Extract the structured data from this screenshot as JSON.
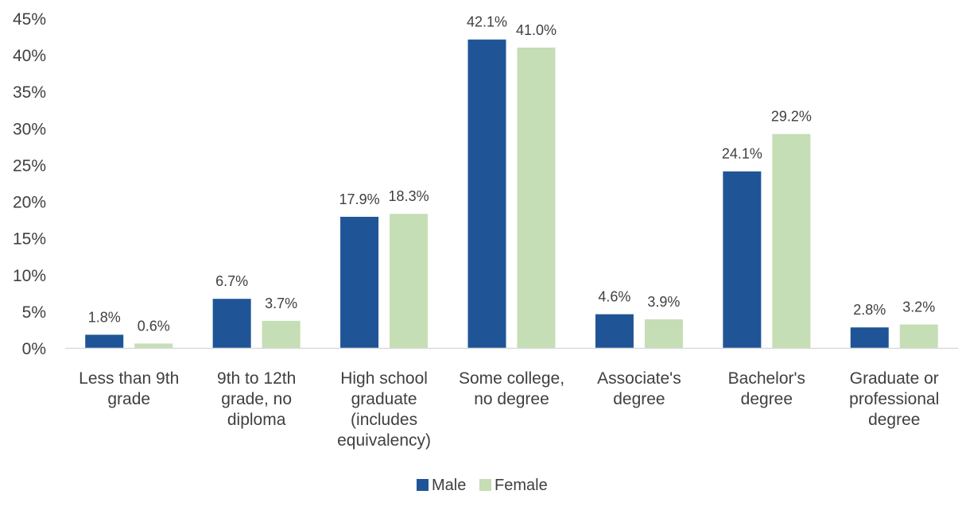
{
  "chart_data": {
    "type": "bar",
    "title": "",
    "xlabel": "",
    "ylabel": "",
    "ylim": [
      0,
      45
    ],
    "ytick_step": 5,
    "ytick_format": "percent",
    "grid": false,
    "legend": "bottom",
    "categories": [
      [
        "Less than 9th",
        "grade"
      ],
      [
        "9th to 12th",
        "grade, no",
        "diploma"
      ],
      [
        "High school",
        "graduate",
        "(includes",
        "equivalency)"
      ],
      [
        "Some college,",
        "no degree"
      ],
      [
        "Associate's",
        "degree"
      ],
      [
        "Bachelor's",
        "degree"
      ],
      [
        "Graduate or",
        "professional",
        "degree"
      ]
    ],
    "series": [
      {
        "name": "Male",
        "color": "#1F5596",
        "values": [
          1.8,
          6.7,
          17.9,
          42.1,
          4.6,
          24.1,
          2.8
        ]
      },
      {
        "name": "Female",
        "color": "#C5DEB5",
        "values": [
          0.6,
          3.7,
          18.3,
          41.0,
          3.9,
          29.2,
          3.2
        ]
      }
    ],
    "axis_color": "#D9D9D9"
  }
}
